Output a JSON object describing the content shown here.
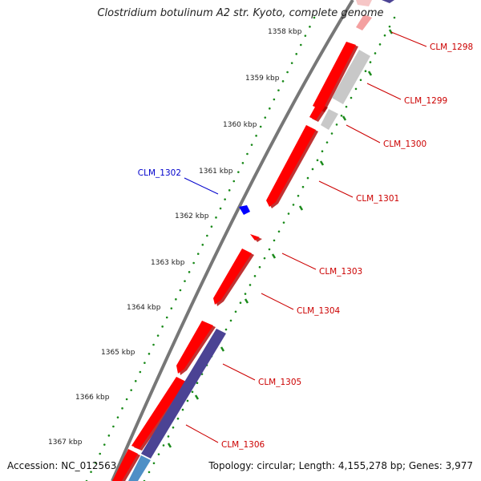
{
  "title": "Clostridium botulinum A2 str. Kyoto, complete genome",
  "footer": {
    "accession": "Accession: NC_012563",
    "stats": "Topology: circular; Length: 4,155,278 bp; Genes: 3,977"
  },
  "ticks": [
    {
      "label": "1358 kbp"
    },
    {
      "label": "1359 kbp"
    },
    {
      "label": "1360 kbp"
    },
    {
      "label": "1361 kbp"
    },
    {
      "label": "1362 kbp"
    },
    {
      "label": "1363 kbp"
    },
    {
      "label": "1364 kbp"
    },
    {
      "label": "1365 kbp"
    },
    {
      "label": "1366 kbp"
    },
    {
      "label": "1367 kbp"
    }
  ],
  "genes": [
    {
      "label": "CLM_1298",
      "color": "#cc0000"
    },
    {
      "label": "CLM_1299",
      "color": "#cc0000"
    },
    {
      "label": "CLM_1300",
      "color": "#cc0000"
    },
    {
      "label": "CLM_1301",
      "color": "#cc0000"
    },
    {
      "label": "CLM_1302",
      "color": "#0000cc"
    },
    {
      "label": "CLM_1303",
      "color": "#cc0000"
    },
    {
      "label": "CLM_1304",
      "color": "#cc0000"
    },
    {
      "label": "CLM_1305",
      "color": "#cc0000"
    },
    {
      "label": "CLM_1306",
      "color": "#cc0000"
    }
  ],
  "colors": {
    "forward_cds": "#ff0000",
    "forward_cds_shadow": "#b00000",
    "reverse_cds": "#0000ff",
    "gc_skew": "#4b4394",
    "gray_feature": "#c8c8c8",
    "backbone": "#777777",
    "tick_dots": "#1a8a1a",
    "label_red": "#cc0000",
    "label_blue": "#0000cc"
  }
}
